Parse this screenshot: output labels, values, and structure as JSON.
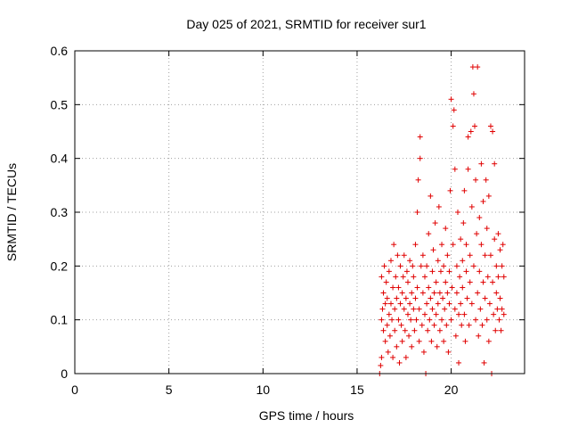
{
  "chart_data": {
    "type": "scatter",
    "title": "Day 025 of 2021, SRMTID for receiver sur1",
    "xlabel": "GPS time / hours",
    "ylabel": "SRMTID / TECUs",
    "xlim": [
      0,
      23.9
    ],
    "ylim": [
      0,
      0.6
    ],
    "xticks": [
      0,
      5,
      10,
      15,
      20
    ],
    "yticks": [
      0,
      0.1,
      0.2,
      0.3,
      0.4,
      0.5,
      0.6
    ],
    "xtick_labels": [
      "0",
      "5",
      "10",
      "15",
      "20"
    ],
    "ytick_labels": [
      "0",
      "0.1",
      "0.2",
      "0.3",
      "0.4",
      "0.5",
      "0.6"
    ],
    "grid": true,
    "marker": "+",
    "color": "#e00000",
    "series": [
      {
        "name": "SRMTID",
        "points": [
          [
            16.2,
            0.0
          ],
          [
            16.25,
            0.015
          ],
          [
            16.3,
            0.03
          ],
          [
            16.3,
            0.1
          ],
          [
            16.3,
            0.18
          ],
          [
            16.35,
            0.12
          ],
          [
            16.4,
            0.08
          ],
          [
            16.4,
            0.15
          ],
          [
            16.45,
            0.2
          ],
          [
            16.5,
            0.13
          ],
          [
            16.5,
            0.06
          ],
          [
            16.55,
            0.17
          ],
          [
            16.6,
            0.09
          ],
          [
            16.6,
            0.14
          ],
          [
            16.65,
            0.04
          ],
          [
            16.7,
            0.11
          ],
          [
            16.7,
            0.19
          ],
          [
            16.75,
            0.07
          ],
          [
            16.8,
            0.13
          ],
          [
            16.8,
            0.21
          ],
          [
            16.85,
            0.1
          ],
          [
            16.9,
            0.16
          ],
          [
            16.9,
            0.03
          ],
          [
            16.95,
            0.24
          ],
          [
            17.0,
            0.12
          ],
          [
            17.0,
            0.08
          ],
          [
            17.05,
            0.18
          ],
          [
            17.1,
            0.14
          ],
          [
            17.1,
            0.05
          ],
          [
            17.15,
            0.22
          ],
          [
            17.2,
            0.1
          ],
          [
            17.2,
            0.16
          ],
          [
            17.25,
            0.02
          ],
          [
            17.3,
            0.13
          ],
          [
            17.3,
            0.2
          ],
          [
            17.35,
            0.09
          ],
          [
            17.4,
            0.15
          ],
          [
            17.4,
            0.06
          ],
          [
            17.45,
            0.18
          ],
          [
            17.5,
            0.12
          ],
          [
            17.5,
            0.22
          ],
          [
            17.55,
            0.08
          ],
          [
            17.6,
            0.14
          ],
          [
            17.6,
            0.03
          ],
          [
            17.65,
            0.19
          ],
          [
            17.7,
            0.11
          ],
          [
            17.7,
            0.17
          ],
          [
            17.75,
            0.07
          ],
          [
            17.8,
            0.13
          ],
          [
            17.8,
            0.21
          ],
          [
            17.85,
            0.1
          ],
          [
            17.9,
            0.15
          ],
          [
            17.9,
            0.05
          ],
          [
            17.95,
            0.2
          ],
          [
            18.0,
            0.12
          ],
          [
            18.0,
            0.18
          ],
          [
            18.05,
            0.08
          ],
          [
            18.1,
            0.14
          ],
          [
            18.1,
            0.24
          ],
          [
            18.15,
            0.1
          ],
          [
            18.2,
            0.3
          ],
          [
            18.2,
            0.16
          ],
          [
            18.25,
            0.36
          ],
          [
            18.3,
            0.06
          ],
          [
            18.3,
            0.12
          ],
          [
            18.35,
            0.44
          ],
          [
            18.35,
            0.4
          ],
          [
            18.4,
            0.2
          ],
          [
            18.45,
            0.09
          ],
          [
            18.5,
            0.15
          ],
          [
            18.5,
            0.22
          ],
          [
            18.55,
            0.04
          ],
          [
            18.6,
            0.11
          ],
          [
            18.6,
            0.18
          ],
          [
            18.65,
            0.0
          ],
          [
            18.7,
            0.13
          ],
          [
            18.7,
            0.2
          ],
          [
            18.75,
            0.08
          ],
          [
            18.8,
            0.16
          ],
          [
            18.8,
            0.26
          ],
          [
            18.85,
            0.1
          ],
          [
            18.9,
            0.14
          ],
          [
            18.9,
            0.33
          ],
          [
            18.95,
            0.06
          ],
          [
            19.0,
            0.12
          ],
          [
            19.0,
            0.19
          ],
          [
            19.05,
            0.23
          ],
          [
            19.1,
            0.09
          ],
          [
            19.1,
            0.15
          ],
          [
            19.15,
            0.28
          ],
          [
            19.2,
            0.11
          ],
          [
            19.2,
            0.17
          ],
          [
            19.25,
            0.05
          ],
          [
            19.3,
            0.13
          ],
          [
            19.3,
            0.21
          ],
          [
            19.35,
            0.31
          ],
          [
            19.4,
            0.08
          ],
          [
            19.4,
            0.15
          ],
          [
            19.45,
            0.19
          ],
          [
            19.5,
            0.1
          ],
          [
            19.5,
            0.24
          ],
          [
            19.55,
            0.14
          ],
          [
            19.6,
            0.06
          ],
          [
            19.6,
            0.2
          ],
          [
            19.65,
            0.12
          ],
          [
            19.7,
            0.17
          ],
          [
            19.7,
            0.27
          ],
          [
            19.75,
            0.09
          ],
          [
            19.8,
            0.15
          ],
          [
            19.8,
            0.22
          ],
          [
            19.85,
            0.04
          ],
          [
            19.9,
            0.13
          ],
          [
            19.9,
            0.19
          ],
          [
            19.95,
            0.34
          ],
          [
            20.0,
            0.51
          ],
          [
            20.0,
            0.1
          ],
          [
            20.05,
            0.16
          ],
          [
            20.1,
            0.46
          ],
          [
            20.1,
            0.24
          ],
          [
            20.15,
            0.49
          ],
          [
            20.2,
            0.12
          ],
          [
            20.2,
            0.38
          ],
          [
            20.25,
            0.07
          ],
          [
            20.3,
            0.2
          ],
          [
            20.3,
            0.15
          ],
          [
            20.35,
            0.3
          ],
          [
            20.4,
            0.02
          ],
          [
            20.4,
            0.11
          ],
          [
            20.45,
            0.18
          ],
          [
            20.5,
            0.25
          ],
          [
            20.5,
            0.13
          ],
          [
            20.55,
            0.09
          ],
          [
            20.6,
            0.21
          ],
          [
            20.6,
            0.16
          ],
          [
            20.65,
            0.28
          ],
          [
            20.7,
            0.11
          ],
          [
            20.7,
            0.34
          ],
          [
            20.75,
            0.06
          ],
          [
            20.8,
            0.19
          ],
          [
            20.8,
            0.24
          ],
          [
            20.85,
            0.14
          ],
          [
            20.9,
            0.44
          ],
          [
            20.9,
            0.38
          ],
          [
            20.95,
            0.09
          ],
          [
            21.0,
            0.17
          ],
          [
            21.0,
            0.22
          ],
          [
            21.05,
            0.45
          ],
          [
            21.1,
            0.13
          ],
          [
            21.1,
            0.31
          ],
          [
            21.15,
            0.57
          ],
          [
            21.2,
            0.52
          ],
          [
            21.2,
            0.2
          ],
          [
            21.25,
            0.46
          ],
          [
            21.3,
            0.1
          ],
          [
            21.3,
            0.36
          ],
          [
            21.35,
            0.26
          ],
          [
            21.4,
            0.15
          ],
          [
            21.4,
            0.57
          ],
          [
            21.45,
            0.07
          ],
          [
            21.5,
            0.19
          ],
          [
            21.5,
            0.29
          ],
          [
            21.55,
            0.12
          ],
          [
            21.6,
            0.39
          ],
          [
            21.6,
            0.24
          ],
          [
            21.65,
            0.09
          ],
          [
            21.7,
            0.17
          ],
          [
            21.7,
            0.32
          ],
          [
            21.75,
            0.02
          ],
          [
            21.8,
            0.14
          ],
          [
            21.8,
            0.22
          ],
          [
            21.85,
            0.36
          ],
          [
            21.9,
            0.1
          ],
          [
            21.9,
            0.27
          ],
          [
            21.95,
            0.18
          ],
          [
            22.0,
            0.06
          ],
          [
            22.0,
            0.33
          ],
          [
            22.05,
            0.13
          ],
          [
            22.1,
            0.22
          ],
          [
            22.1,
            0.46
          ],
          [
            22.15,
            0.0
          ],
          [
            22.2,
            0.17
          ],
          [
            22.2,
            0.45
          ],
          [
            22.25,
            0.11
          ],
          [
            22.3,
            0.25
          ],
          [
            22.3,
            0.39
          ],
          [
            22.35,
            0.08
          ],
          [
            22.4,
            0.15
          ],
          [
            22.4,
            0.2
          ],
          [
            22.45,
            0.12
          ],
          [
            22.5,
            0.26
          ],
          [
            22.5,
            0.18
          ],
          [
            22.55,
            0.1
          ],
          [
            22.6,
            0.14
          ],
          [
            22.6,
            0.23
          ],
          [
            22.65,
            0.08
          ],
          [
            22.7,
            0.12
          ],
          [
            22.7,
            0.2
          ],
          [
            22.75,
            0.24
          ],
          [
            22.8,
            0.11
          ],
          [
            22.8,
            0.18
          ]
        ]
      }
    ]
  }
}
